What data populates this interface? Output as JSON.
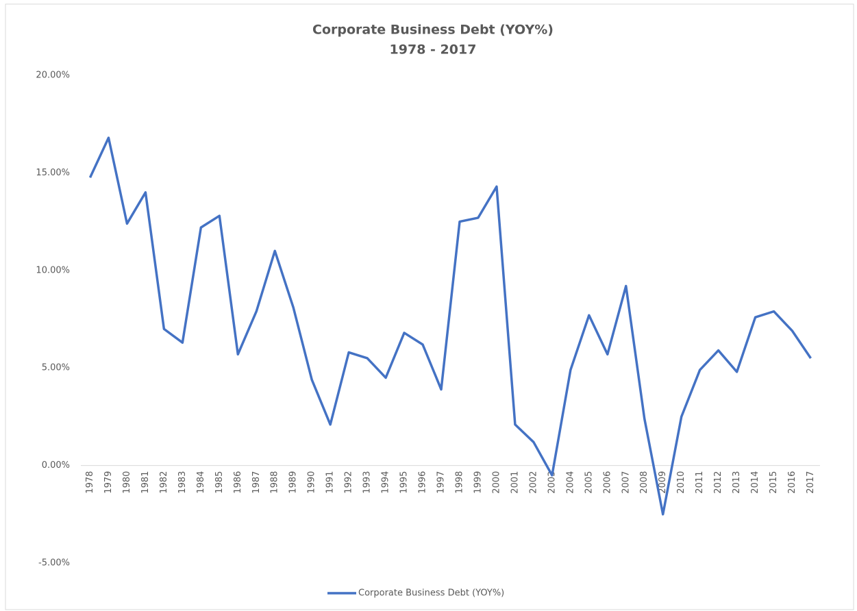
{
  "chart_data": {
    "type": "line",
    "title": "Corporate Business Debt (YOY%)",
    "subtitle": "1978 - 2017",
    "categories": [
      "1978",
      "1979",
      "1980",
      "1981",
      "1982",
      "1983",
      "1984",
      "1985",
      "1986",
      "1987",
      "1988",
      "1989",
      "1990",
      "1991",
      "1992",
      "1993",
      "1994",
      "1995",
      "1996",
      "1997",
      "1998",
      "1999",
      "2000",
      "2001",
      "2002",
      "2003",
      "2004",
      "2005",
      "2006",
      "2007",
      "2008",
      "2009",
      "2010",
      "2011",
      "2012",
      "2013",
      "2014",
      "2015",
      "2016",
      "2017"
    ],
    "series": [
      {
        "name": "Corporate Business Debt (YOY%)",
        "color": "#4472c4",
        "values": [
          14.76,
          16.8,
          12.4,
          14.0,
          7.0,
          6.3,
          12.2,
          12.8,
          5.7,
          7.9,
          11.0,
          8.1,
          4.4,
          2.1,
          5.8,
          5.5,
          4.5,
          6.8,
          6.2,
          3.9,
          12.5,
          12.7,
          14.3,
          2.1,
          1.2,
          -0.5,
          4.9,
          7.7,
          5.7,
          9.2,
          2.4,
          -2.5,
          2.5,
          4.9,
          5.9,
          4.8,
          7.6,
          7.9,
          6.9,
          5.5
        ]
      }
    ],
    "ylim": [
      -5,
      20
    ],
    "yticks": [
      {
        "value": -5,
        "label": "-5.00%"
      },
      {
        "value": 0,
        "label": "0.00%"
      },
      {
        "value": 5,
        "label": "5.00%"
      },
      {
        "value": 10,
        "label": "10.00%"
      },
      {
        "value": 15,
        "label": "15.00%"
      },
      {
        "value": 20,
        "label": "20.00%"
      }
    ],
    "grid": false,
    "legend": "bottom"
  }
}
